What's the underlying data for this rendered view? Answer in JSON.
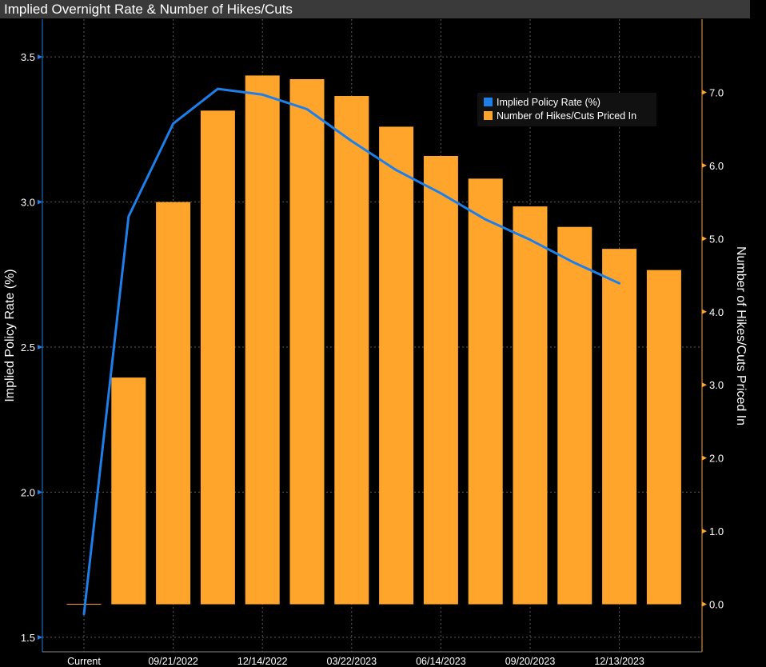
{
  "title": "Implied Overnight Rate & Number of Hikes/Cuts",
  "chart_data": {
    "type": "bar+line",
    "title": "Implied Overnight Rate & Number of Hikes/Cuts",
    "categories": [
      "Current",
      "",
      "09/21/2022",
      "",
      "12/14/2022",
      "",
      "03/22/2023",
      "",
      "06/14/2023",
      "",
      "09/20/2023",
      "",
      "12/13/2023",
      ""
    ],
    "x_tick_labels": [
      "Current",
      "09/21/2022",
      "12/14/2022",
      "03/22/2023",
      "06/14/2023",
      "09/20/2023",
      "12/13/2023"
    ],
    "series": [
      {
        "name": "Implied Policy Rate (%)",
        "type": "line",
        "axis": "left",
        "color": "#1e7fe8",
        "values": [
          1.58,
          2.95,
          3.27,
          3.39,
          3.37,
          3.32,
          3.21,
          3.11,
          3.03,
          2.94,
          2.87,
          2.79,
          2.72,
          null
        ]
      },
      {
        "name": "Number of Hikes/Cuts Priced In",
        "type": "bar",
        "axis": "right",
        "color": "#ffa52c",
        "values": [
          0.0,
          3.1,
          5.5,
          6.75,
          7.23,
          7.18,
          6.95,
          6.53,
          6.13,
          5.82,
          5.44,
          5.16,
          4.86,
          4.57
        ]
      }
    ],
    "ylabel_left": "Implied Policy Rate (%)",
    "ylabel_right": "Number of Hikes/Cuts Priced In",
    "ylim_left": [
      1.45,
      3.63
    ],
    "yticks_left": [
      "1.5",
      "2.0",
      "2.5",
      "3.0",
      "3.5"
    ],
    "ylim_right": [
      -0.65,
      8.0
    ],
    "yticks_right": [
      "0.0",
      "1.0",
      "2.0",
      "3.0",
      "4.0",
      "5.0",
      "6.0",
      "7.0"
    ],
    "grid": true,
    "legend_position": "top-right"
  }
}
